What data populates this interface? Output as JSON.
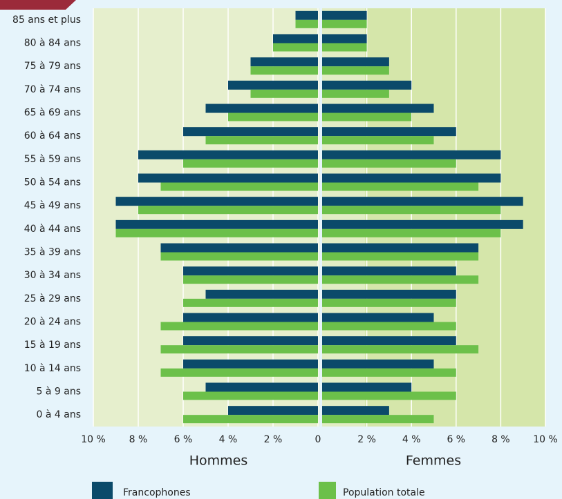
{
  "chart_data": {
    "type": "pyramid",
    "categories": [
      "85 ans et plus",
      "80 à 84 ans",
      "75 à 79 ans",
      "70 à 74 ans",
      "65 à 69 ans",
      "60 à 64 ans",
      "55 à 59 ans",
      "50 à 54 ans",
      "45 à 49 ans",
      "40 à 44 ans",
      "35 à 39 ans",
      "30 à 34 ans",
      "25 à 29 ans",
      "20 à 24 ans",
      "15 à 19 ans",
      "10 à 14 ans",
      "5 à 9 ans",
      "0 à 4 ans"
    ],
    "xlabel": "Hommes",
    "x2label": "Femmes",
    "xlim": [
      10,
      0
    ],
    "x2lim": [
      0,
      10
    ],
    "xticks": [
      {
        "value": 10,
        "label": "10 %"
      },
      {
        "value": 8,
        "label": "8 %"
      },
      {
        "value": 6,
        "label": "6 %"
      },
      {
        "value": 4,
        "label": "4 %"
      },
      {
        "value": 2,
        "label": "2 %"
      },
      0
    ],
    "x2ticks": [
      {
        "value": 2,
        "label": "2 %"
      },
      {
        "value": 4,
        "label": "4 %"
      },
      {
        "value": 6,
        "label": "6 %"
      },
      {
        "value": 8,
        "label": "8 %"
      },
      {
        "value": 10,
        "label": "10 %"
      }
    ],
    "grid": true,
    "series": [
      {
        "name": "Francophones",
        "color": "#0b4a6a",
        "left_values": [
          1,
          2,
          3,
          4,
          5,
          6,
          8,
          8,
          9,
          9,
          7,
          6,
          5,
          6,
          6,
          6,
          5,
          4
        ],
        "right_values": [
          2,
          2,
          3,
          4,
          5,
          6,
          8,
          8,
          9,
          9,
          7,
          6,
          6,
          5,
          6,
          5,
          4,
          3
        ]
      },
      {
        "name": "Population totale",
        "color": "#6cc04a",
        "left_values": [
          1,
          2,
          3,
          3,
          4,
          5,
          6,
          7,
          8,
          9,
          7,
          6,
          6,
          7,
          7,
          7,
          6,
          6
        ],
        "right_values": [
          2,
          2,
          3,
          3,
          4,
          5,
          6,
          7,
          8,
          8,
          7,
          7,
          6,
          6,
          7,
          6,
          6,
          5
        ]
      }
    ]
  }
}
